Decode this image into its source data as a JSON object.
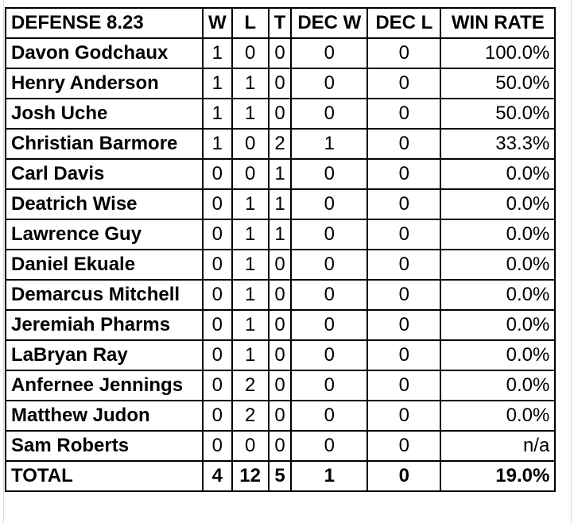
{
  "table": {
    "headers": {
      "name": "DEFENSE 8.23",
      "w": "W",
      "l": "L",
      "t": "T",
      "dec_w": "DEC W",
      "dec_l": "DEC L",
      "win_rate": "WIN RATE"
    },
    "rows": [
      {
        "name": "Davon Godchaux",
        "w": "1",
        "l": "0",
        "t": "0",
        "dec_w": "0",
        "dec_l": "0",
        "win_rate": "100.0%"
      },
      {
        "name": "Henry Anderson",
        "w": "1",
        "l": "1",
        "t": "0",
        "dec_w": "0",
        "dec_l": "0",
        "win_rate": "50.0%"
      },
      {
        "name": "Josh Uche",
        "w": "1",
        "l": "1",
        "t": "0",
        "dec_w": "0",
        "dec_l": "0",
        "win_rate": "50.0%"
      },
      {
        "name": "Christian Barmore",
        "w": "1",
        "l": "0",
        "t": "2",
        "dec_w": "1",
        "dec_l": "0",
        "win_rate": "33.3%"
      },
      {
        "name": "Carl Davis",
        "w": "0",
        "l": "0",
        "t": "1",
        "dec_w": "0",
        "dec_l": "0",
        "win_rate": "0.0%"
      },
      {
        "name": "Deatrich Wise",
        "w": "0",
        "l": "1",
        "t": "1",
        "dec_w": "0",
        "dec_l": "0",
        "win_rate": "0.0%"
      },
      {
        "name": "Lawrence Guy",
        "w": "0",
        "l": "1",
        "t": "1",
        "dec_w": "0",
        "dec_l": "0",
        "win_rate": "0.0%"
      },
      {
        "name": "Daniel Ekuale",
        "w": "0",
        "l": "1",
        "t": "0",
        "dec_w": "0",
        "dec_l": "0",
        "win_rate": "0.0%"
      },
      {
        "name": "Demarcus Mitchell",
        "w": "0",
        "l": "1",
        "t": "0",
        "dec_w": "0",
        "dec_l": "0",
        "win_rate": "0.0%"
      },
      {
        "name": "Jeremiah Pharms",
        "w": "0",
        "l": "1",
        "t": "0",
        "dec_w": "0",
        "dec_l": "0",
        "win_rate": "0.0%"
      },
      {
        "name": "LaBryan Ray",
        "w": "0",
        "l": "1",
        "t": "0",
        "dec_w": "0",
        "dec_l": "0",
        "win_rate": "0.0%"
      },
      {
        "name": "Anfernee Jennings",
        "w": "0",
        "l": "2",
        "t": "0",
        "dec_w": "0",
        "dec_l": "0",
        "win_rate": "0.0%"
      },
      {
        "name": "Matthew Judon",
        "w": "0",
        "l": "2",
        "t": "0",
        "dec_w": "0",
        "dec_l": "0",
        "win_rate": "0.0%"
      },
      {
        "name": "Sam Roberts",
        "w": "0",
        "l": "0",
        "t": "0",
        "dec_w": "0",
        "dec_l": "0",
        "win_rate": "n/a"
      }
    ],
    "total": {
      "name": "TOTAL",
      "w": "4",
      "l": "12",
      "t": "5",
      "dec_w": "1",
      "dec_l": "0",
      "win_rate": "19.0%"
    }
  }
}
